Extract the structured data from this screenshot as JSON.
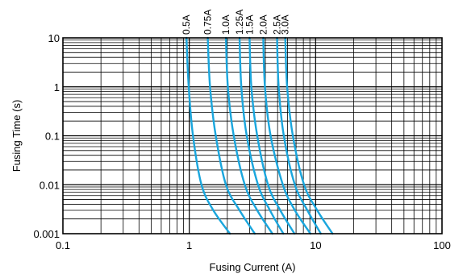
{
  "chart_data": {
    "type": "line",
    "title": "",
    "xlabel": "Fusing Current (A)",
    "ylabel": "Fusing Time (s)",
    "xscale": "log",
    "yscale": "log",
    "xlim": [
      0.1,
      100
    ],
    "ylim": [
      0.001,
      10
    ],
    "grid": true,
    "legend": "labels above plot",
    "x_tick_labels": [
      "0.1",
      "1",
      "10",
      "100"
    ],
    "y_tick_labels": [
      "0.001",
      "0.01",
      "0.1",
      "1",
      "10"
    ],
    "line_color": "#1aa6dd",
    "series": [
      {
        "name": "0.5A",
        "x": [
          0.95,
          0.99,
          1.07,
          1.25,
          1.55,
          2.1
        ],
        "y": [
          10,
          1,
          0.1,
          0.01,
          0.003,
          0.001
        ]
      },
      {
        "name": "0.75A",
        "x": [
          1.4,
          1.46,
          1.62,
          1.95,
          2.5,
          3.3
        ],
        "y": [
          10,
          1,
          0.1,
          0.01,
          0.003,
          0.001
        ]
      },
      {
        "name": "1.0A",
        "x": [
          1.95,
          2.02,
          2.25,
          2.75,
          3.45,
          4.55
        ],
        "y": [
          10,
          1,
          0.1,
          0.01,
          0.003,
          0.001
        ]
      },
      {
        "name": "1.25A",
        "x": [
          2.5,
          2.58,
          2.85,
          3.5,
          4.35,
          5.55
        ],
        "y": [
          10,
          1,
          0.1,
          0.01,
          0.003,
          0.001
        ]
      },
      {
        "name": "1.5A",
        "x": [
          3.0,
          3.1,
          3.45,
          4.2,
          5.25,
          6.8
        ],
        "y": [
          10,
          1,
          0.1,
          0.01,
          0.003,
          0.001
        ]
      },
      {
        "name": "2.0A",
        "x": [
          3.85,
          3.97,
          4.4,
          5.5,
          6.85,
          9.1
        ],
        "y": [
          10,
          1,
          0.1,
          0.01,
          0.003,
          0.001
        ]
      },
      {
        "name": "2.5A",
        "x": [
          4.95,
          5.1,
          5.6,
          6.85,
          8.6,
          11.0
        ],
        "y": [
          10,
          1,
          0.1,
          0.01,
          0.003,
          0.001
        ]
      },
      {
        "name": "3.0A",
        "x": [
          5.75,
          5.95,
          6.6,
          8.1,
          10.3,
          13.6
        ],
        "y": [
          10,
          1,
          0.1,
          0.01,
          0.003,
          0.001
        ]
      }
    ]
  }
}
